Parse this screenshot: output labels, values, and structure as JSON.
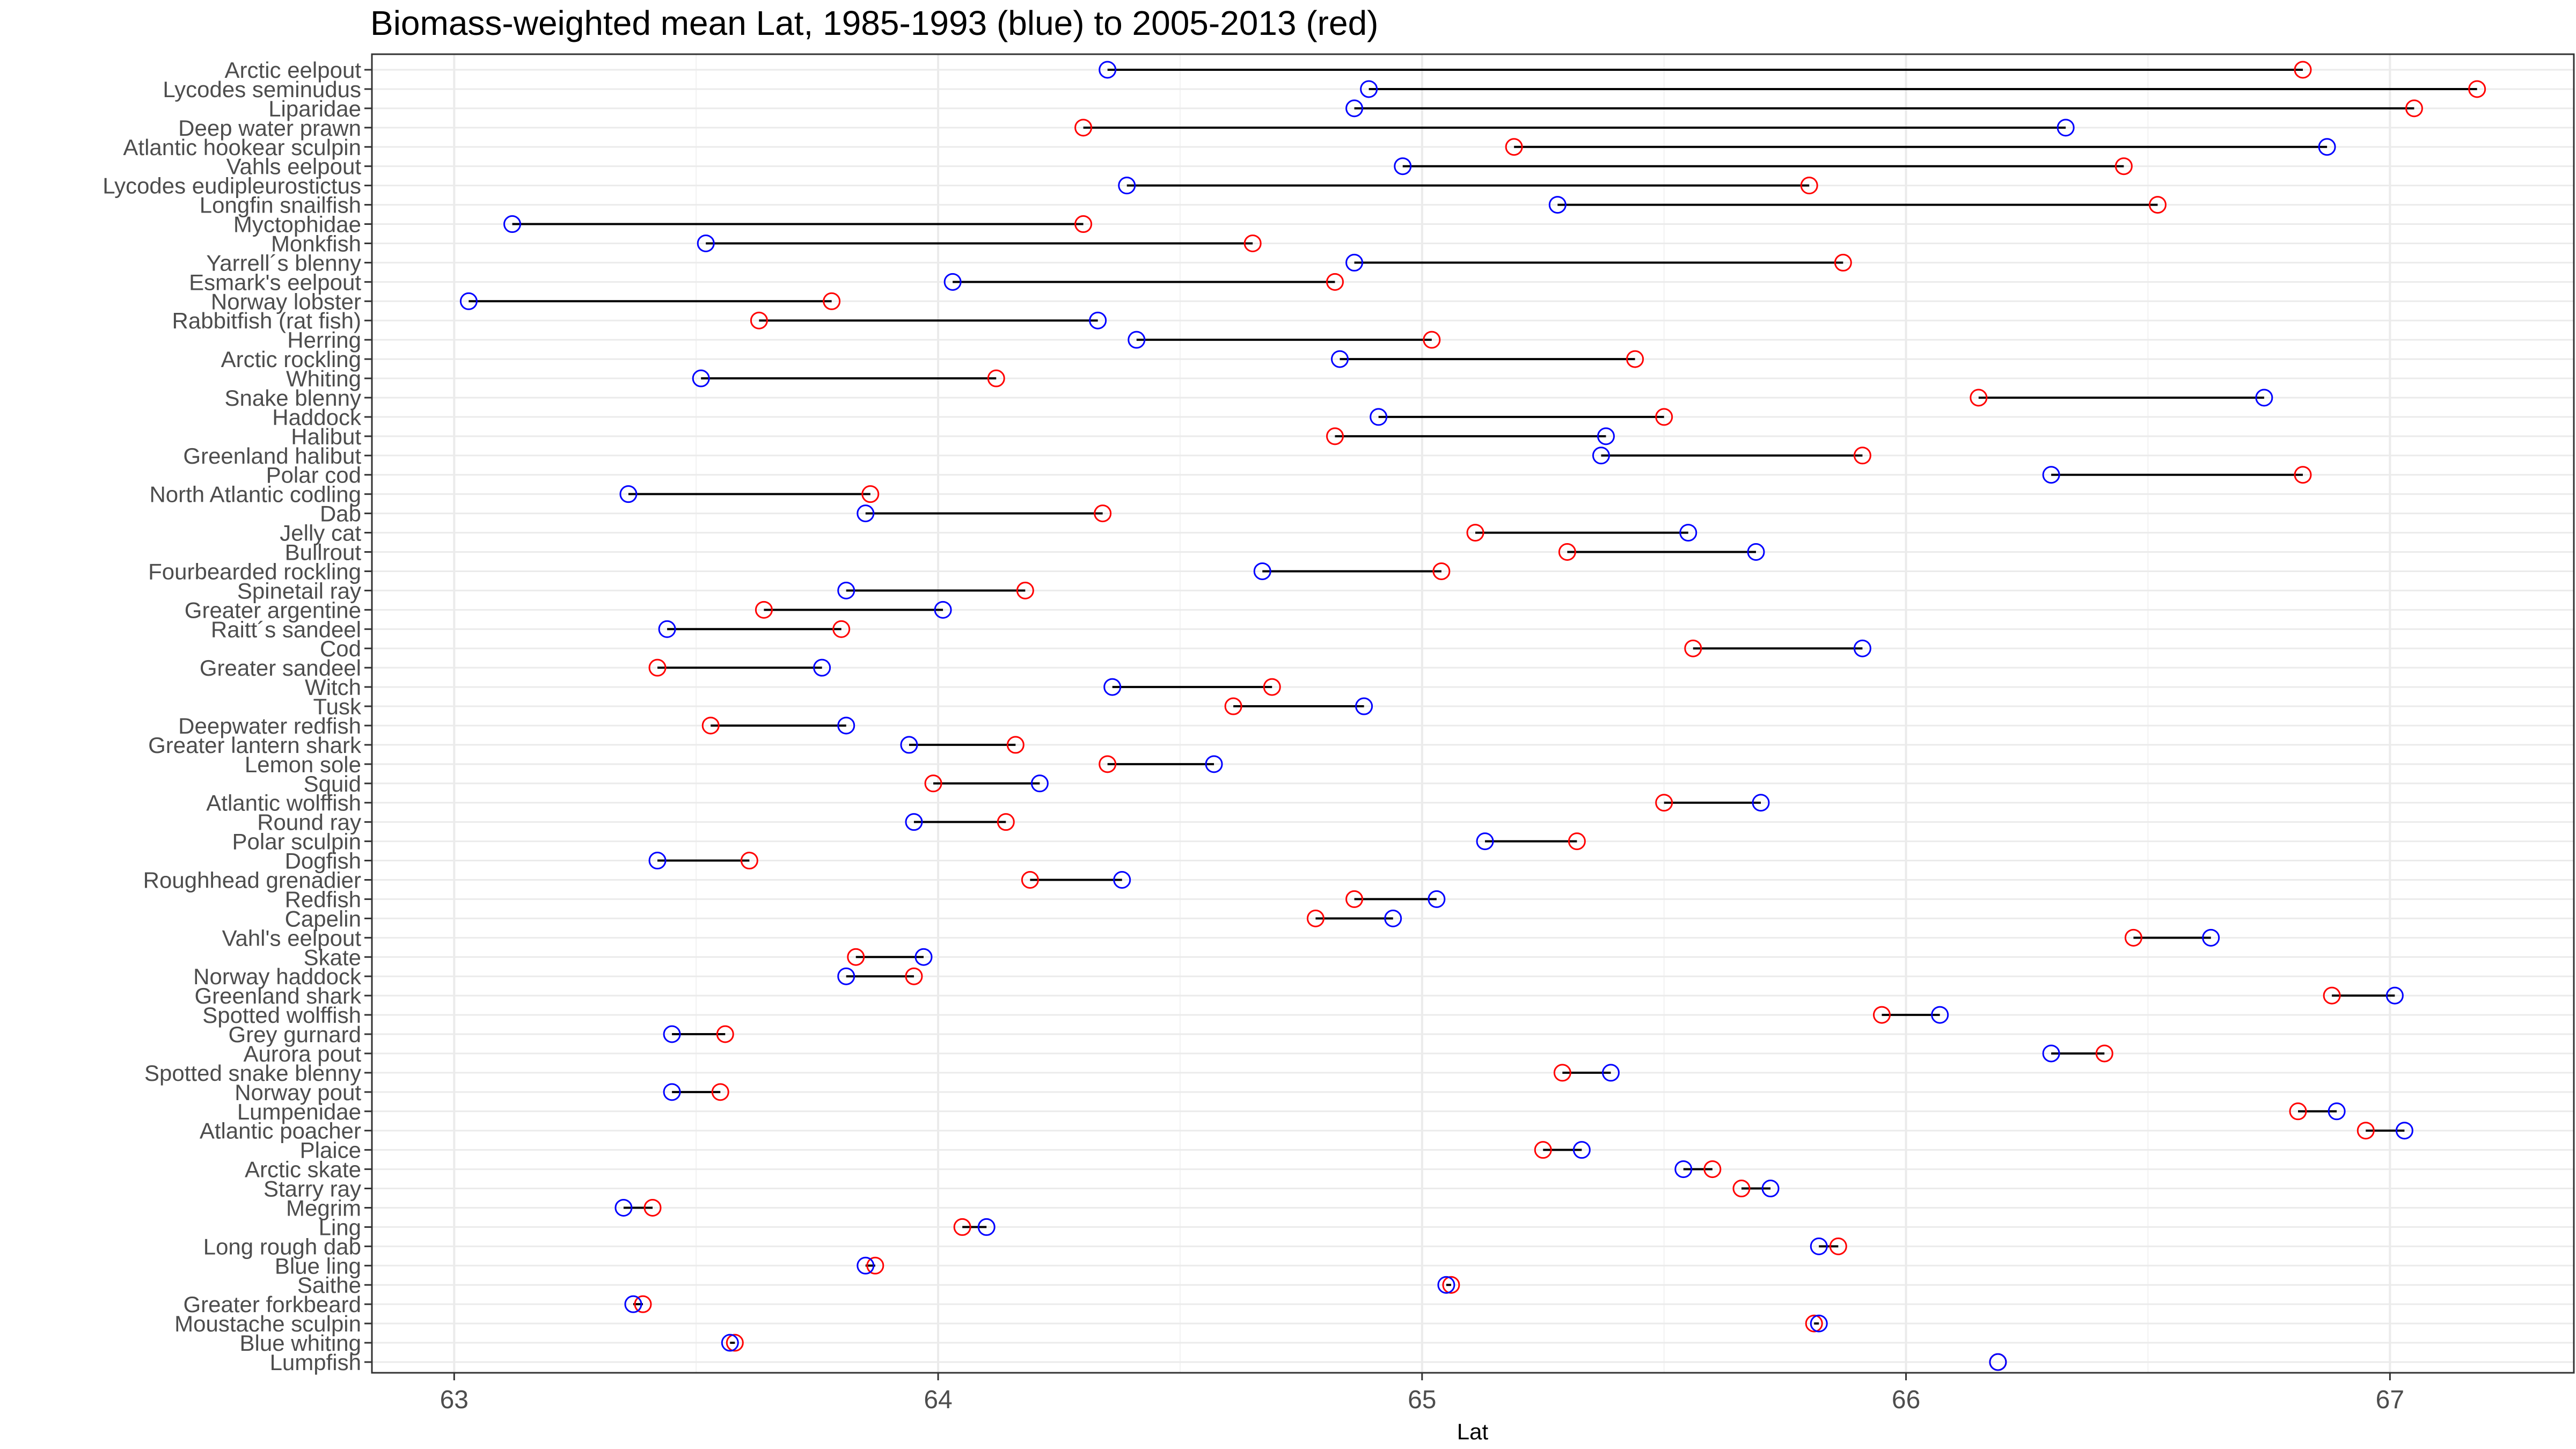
{
  "chart_data": {
    "type": "dumbbell",
    "title": "Biomass-weighted mean Lat, 1985-1993 (blue) to 2005-2013 (red)",
    "xlabel": "Lat",
    "ylabel": "",
    "xlim": [
      62.83,
      67.38
    ],
    "xticks": [
      63,
      64,
      65,
      66,
      67
    ],
    "grid": true,
    "legend": "none",
    "series": [
      {
        "name": "1985-1993",
        "color": "#0000ff"
      },
      {
        "name": "2005-2013",
        "color": "#ff0000"
      }
    ],
    "rows": [
      {
        "name": "Arctic eelpout",
        "start": 64.35,
        "end": 66.82
      },
      {
        "name": "Lycodes seminudus",
        "start": 64.89,
        "end": 67.18
      },
      {
        "name": "Liparidae",
        "start": 64.86,
        "end": 67.05
      },
      {
        "name": "Deep water prawn",
        "start": 66.33,
        "end": 64.3
      },
      {
        "name": "Atlantic hookear sculpin",
        "start": 66.87,
        "end": 65.19
      },
      {
        "name": "Vahls eelpout",
        "start": 64.96,
        "end": 66.45
      },
      {
        "name": "Lycodes eudipleurostictus",
        "start": 64.39,
        "end": 65.8
      },
      {
        "name": "Longfin snailfish",
        "start": 65.28,
        "end": 66.52
      },
      {
        "name": "Myctophidae",
        "start": 63.12,
        "end": 64.3
      },
      {
        "name": "Monkfish",
        "start": 63.52,
        "end": 64.65
      },
      {
        "name": "Yarrell´s blenny",
        "start": 64.86,
        "end": 65.87
      },
      {
        "name": "Esmark's eelpout",
        "start": 64.03,
        "end": 64.82
      },
      {
        "name": "Norway lobster",
        "start": 63.03,
        "end": 63.78
      },
      {
        "name": "Rabbitfish (rat fish)",
        "start": 64.33,
        "end": 63.63
      },
      {
        "name": "Herring",
        "start": 64.41,
        "end": 65.02
      },
      {
        "name": "Arctic rockling",
        "start": 64.83,
        "end": 65.44
      },
      {
        "name": "Whiting",
        "start": 63.51,
        "end": 64.12
      },
      {
        "name": "Snake blenny",
        "start": 66.74,
        "end": 66.15
      },
      {
        "name": "Haddock",
        "start": 64.91,
        "end": 65.5
      },
      {
        "name": "Halibut",
        "start": 65.38,
        "end": 64.82
      },
      {
        "name": "Greenland halibut",
        "start": 65.37,
        "end": 65.91
      },
      {
        "name": "Polar cod",
        "start": 66.3,
        "end": 66.82
      },
      {
        "name": "North Atlantic codling",
        "start": 63.36,
        "end": 63.86
      },
      {
        "name": "Dab",
        "start": 63.85,
        "end": 64.34
      },
      {
        "name": "Jelly cat",
        "start": 65.55,
        "end": 65.11
      },
      {
        "name": "Bullrout",
        "start": 65.69,
        "end": 65.3
      },
      {
        "name": "Fourbearded rockling",
        "start": 64.67,
        "end": 65.04
      },
      {
        "name": "Spinetail ray",
        "start": 63.81,
        "end": 64.18
      },
      {
        "name": "Greater argentine",
        "start": 64.01,
        "end": 63.64
      },
      {
        "name": "Raitt´s sandeel",
        "start": 63.44,
        "end": 63.8
      },
      {
        "name": "Cod",
        "start": 65.91,
        "end": 65.56
      },
      {
        "name": "Greater sandeel",
        "start": 63.76,
        "end": 63.42
      },
      {
        "name": "Witch",
        "start": 64.36,
        "end": 64.69
      },
      {
        "name": "Tusk",
        "start": 64.88,
        "end": 64.61
      },
      {
        "name": "Deepwater redfish",
        "start": 63.81,
        "end": 63.53
      },
      {
        "name": "Greater lantern shark",
        "start": 63.94,
        "end": 64.16
      },
      {
        "name": "Lemon sole",
        "start": 64.57,
        "end": 64.35
      },
      {
        "name": "Squid",
        "start": 64.21,
        "end": 63.99
      },
      {
        "name": "Atlantic wolffish",
        "start": 65.7,
        "end": 65.5
      },
      {
        "name": "Round ray",
        "start": 63.95,
        "end": 64.14
      },
      {
        "name": "Polar sculpin",
        "start": 65.13,
        "end": 65.32
      },
      {
        "name": "Dogfish",
        "start": 63.42,
        "end": 63.61
      },
      {
        "name": "Roughhead grenadier",
        "start": 64.38,
        "end": 64.19
      },
      {
        "name": "Redfish",
        "start": 65.03,
        "end": 64.86
      },
      {
        "name": "Capelin",
        "start": 64.94,
        "end": 64.78
      },
      {
        "name": "Vahl's eelpout",
        "start": 66.63,
        "end": 66.47
      },
      {
        "name": "Skate",
        "start": 63.97,
        "end": 63.83
      },
      {
        "name": "Norway haddock",
        "start": 63.81,
        "end": 63.95
      },
      {
        "name": "Greenland shark",
        "start": 67.01,
        "end": 66.88
      },
      {
        "name": "Spotted wolffish",
        "start": 66.07,
        "end": 65.95
      },
      {
        "name": "Grey gurnard",
        "start": 63.45,
        "end": 63.56
      },
      {
        "name": "Aurora pout",
        "start": 66.3,
        "end": 66.41
      },
      {
        "name": "Spotted snake blenny",
        "start": 65.39,
        "end": 65.29
      },
      {
        "name": "Norway pout",
        "start": 63.45,
        "end": 63.55
      },
      {
        "name": "Lumpenidae",
        "start": 66.89,
        "end": 66.81
      },
      {
        "name": "Atlantic poacher",
        "start": 67.03,
        "end": 66.95
      },
      {
        "name": "Plaice",
        "start": 65.33,
        "end": 65.25
      },
      {
        "name": "Arctic skate",
        "start": 65.54,
        "end": 65.6
      },
      {
        "name": "Starry ray",
        "start": 65.72,
        "end": 65.66
      },
      {
        "name": "Megrim",
        "start": 63.35,
        "end": 63.41
      },
      {
        "name": "Ling",
        "start": 64.1,
        "end": 64.05
      },
      {
        "name": "Long rough dab",
        "start": 65.82,
        "end": 65.86
      },
      {
        "name": "Blue ling",
        "start": 63.85,
        "end": 63.87
      },
      {
        "name": "Saithe",
        "start": 65.05,
        "end": 65.06
      },
      {
        "name": "Greater forkbeard",
        "start": 63.37,
        "end": 63.39
      },
      {
        "name": "Moustache sculpin",
        "start": 65.82,
        "end": 65.81
      },
      {
        "name": "Blue whiting",
        "start": 63.57,
        "end": 63.58
      },
      {
        "name": "Lumpfish",
        "start": 66.19,
        "end": 66.19
      }
    ]
  }
}
